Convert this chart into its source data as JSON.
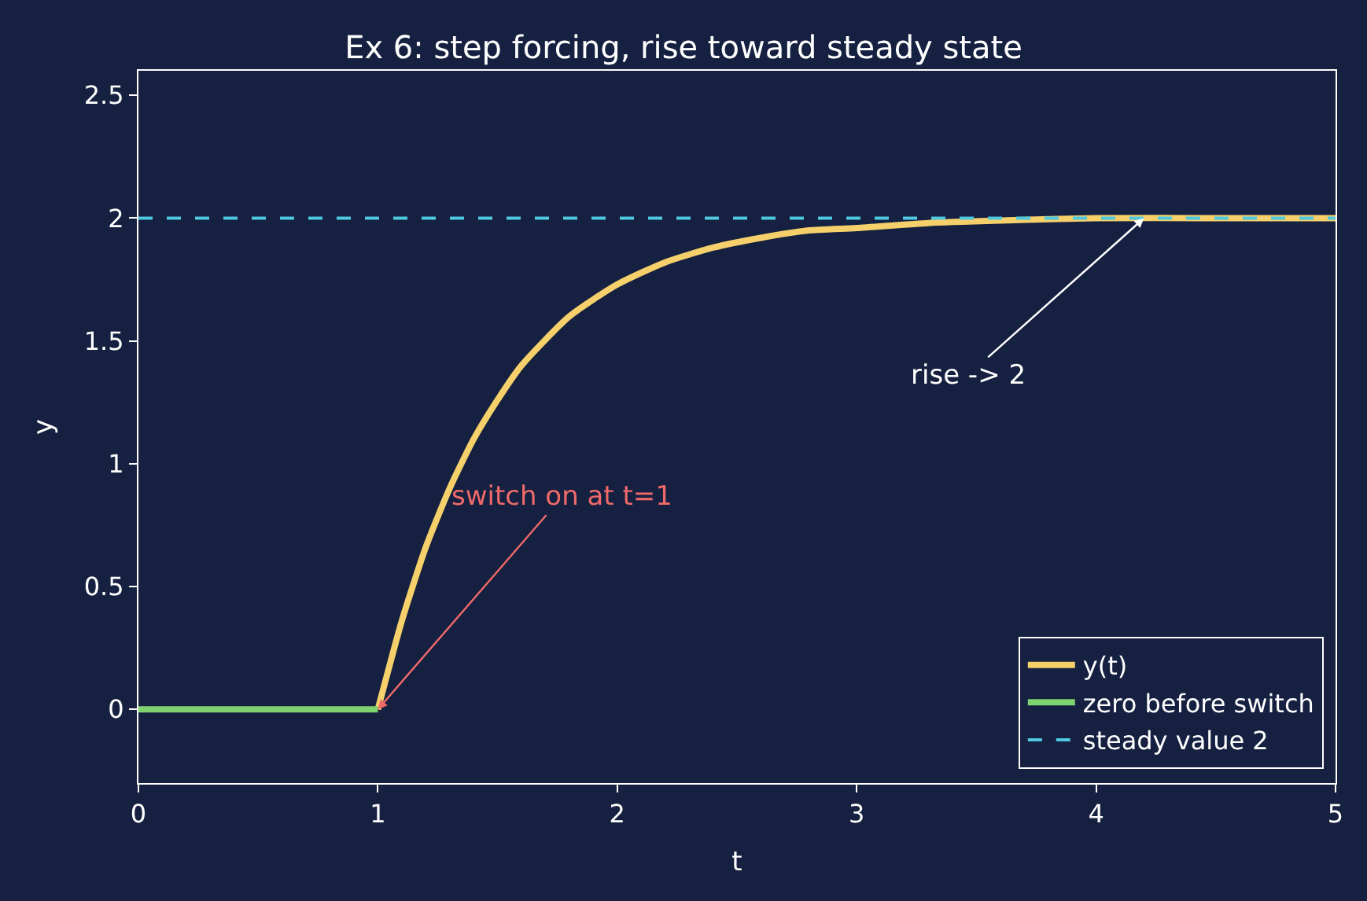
{
  "chart_data": {
    "type": "line",
    "title": "Ex 6: step forcing, rise toward steady state",
    "xlabel": "t",
    "ylabel": "y",
    "series": [
      {
        "name": "y(t)",
        "color": "#f5d06b",
        "x": [
          1,
          1.1,
          1.2,
          1.3,
          1.4,
          1.5,
          1.6,
          1.8,
          2.0,
          2.2,
          2.4,
          2.6,
          2.8,
          3.0,
          3.3,
          3.6,
          4.0,
          4.5,
          5.0
        ],
        "values": [
          0,
          0.36,
          0.66,
          0.9,
          1.1,
          1.26,
          1.4,
          1.6,
          1.73,
          1.82,
          1.88,
          1.92,
          1.95,
          1.96,
          1.98,
          1.99,
          2.0,
          2.0,
          2.0
        ]
      },
      {
        "name": "zero before switch",
        "color": "#7fd36f",
        "x": [
          0,
          1
        ],
        "values": [
          0,
          0
        ]
      }
    ],
    "ref_lines": [
      {
        "axis": "y",
        "value": 2,
        "label": "steady value 2",
        "color": "#4fc8e0",
        "line_style": "dashed"
      }
    ],
    "annotations": [
      {
        "text": "switch on at t=1",
        "x": 1,
        "y": 0
      },
      {
        "text": "rise -> 2",
        "x": 4.2,
        "y": 2
      }
    ],
    "xlim": [
      0,
      5
    ],
    "xticks": [
      0,
      1,
      2,
      3,
      4,
      5
    ],
    "ylim": [
      -0.3,
      2.6
    ],
    "yticks": [
      0,
      0.5,
      1,
      1.5,
      2,
      2.5
    ],
    "grid": false,
    "legend": "bottom right",
    "line_style": "solid",
    "marker": "none"
  }
}
